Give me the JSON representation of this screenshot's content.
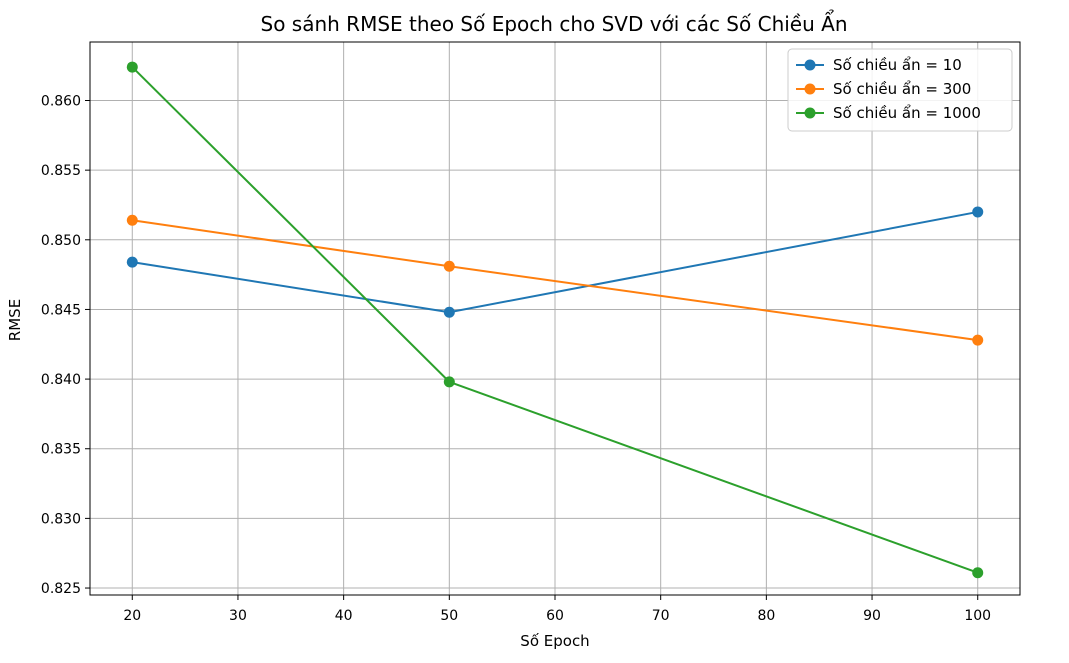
{
  "chart_data": {
    "type": "line",
    "title": "So sánh RMSE theo Số Epoch cho SVD với các Số Chiều Ẩn",
    "xlabel": "Số Epoch",
    "ylabel": "RMSE",
    "x": [
      20,
      50,
      100
    ],
    "xlim": [
      16,
      104
    ],
    "ylim": [
      0.8245,
      0.8642
    ],
    "xticks": [
      "20",
      "30",
      "40",
      "50",
      "60",
      "70",
      "80",
      "90",
      "100"
    ],
    "yticks": [
      "0.825",
      "0.830",
      "0.835",
      "0.840",
      "0.845",
      "0.850",
      "0.855",
      "0.860"
    ],
    "grid": true,
    "legend_position": "top-right",
    "series": [
      {
        "name": "Số chiều ẩn = 10",
        "color": "#1f77b4",
        "values": [
          0.8484,
          0.8448,
          0.852
        ]
      },
      {
        "name": "Số chiều ẩn = 300",
        "color": "#ff7f0e",
        "values": [
          0.8514,
          0.8481,
          0.8428
        ]
      },
      {
        "name": "Số chiều ẩn = 1000",
        "color": "#2ca02c",
        "values": [
          0.8624,
          0.8398,
          0.8261
        ]
      }
    ]
  }
}
